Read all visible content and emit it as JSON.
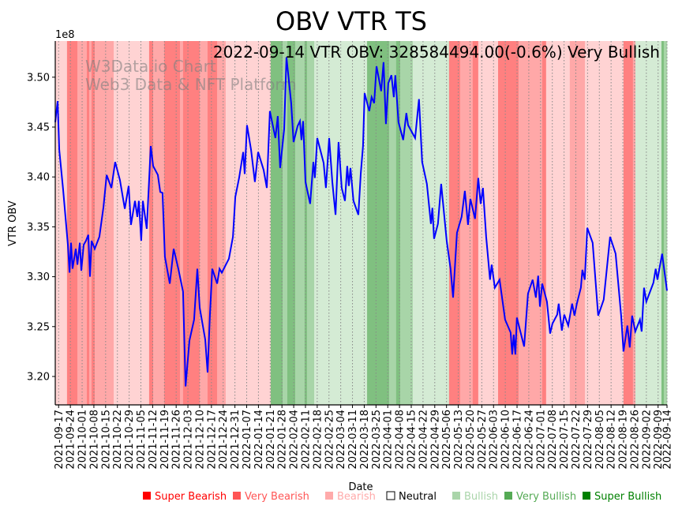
{
  "chart_data": {
    "type": "line",
    "title": "OBV VTR TS",
    "annotation": "2022-09-14 VTR OBV: 328584494.00(-0.6%) Very Bullish",
    "watermark": [
      "W3Data.io Chart",
      "Web3 Data & NFT Platform"
    ],
    "xlabel": "Date",
    "ylabel": "VTR OBV",
    "y_offset_label": "1e8",
    "ylim": [
      3.17,
      3.54
    ],
    "xlim_days": [
      0,
      364.3
    ],
    "start_date": "2021-09-15",
    "y_ticks": [
      "3.20",
      "3.25",
      "3.30",
      "3.35",
      "3.40",
      "3.45",
      "3.50"
    ],
    "x_ticks": [
      "2021-09-17",
      "2021-09-24",
      "2021-10-01",
      "2021-10-08",
      "2021-10-15",
      "2021-10-22",
      "2021-10-29",
      "2021-11-05",
      "2021-11-12",
      "2021-11-19",
      "2021-11-26",
      "2021-12-03",
      "2021-12-10",
      "2021-12-17",
      "2021-12-24",
      "2021-12-31",
      "2022-01-07",
      "2022-01-14",
      "2022-01-21",
      "2022-01-28",
      "2022-02-04",
      "2022-02-11",
      "2022-02-18",
      "2022-02-25",
      "2022-03-04",
      "2022-03-11",
      "2022-03-18",
      "2022-03-25",
      "2022-04-01",
      "2022-04-08",
      "2022-04-15",
      "2022-04-22",
      "2022-04-29",
      "2022-05-06",
      "2022-05-13",
      "2022-05-20",
      "2022-05-27",
      "2022-06-03",
      "2022-06-10",
      "2022-06-17",
      "2022-06-24",
      "2022-07-01",
      "2022-07-08",
      "2022-07-15",
      "2022-07-22",
      "2022-07-29",
      "2022-08-05",
      "2022-08-12",
      "2022-08-19",
      "2022-08-26",
      "2022-09-02",
      "2022-09-09",
      "2022-09-14"
    ],
    "series": [
      {
        "name": "VTR OBV (1e8)",
        "color": "#0000ff",
        "points": [
          [
            0,
            3.455
          ],
          [
            1.4,
            3.476
          ],
          [
            2.4,
            3.427
          ],
          [
            4.7,
            3.387
          ],
          [
            7.5,
            3.332
          ],
          [
            8.5,
            3.304
          ],
          [
            9.4,
            3.334
          ],
          [
            10.3,
            3.308
          ],
          [
            12.2,
            3.328
          ],
          [
            13.2,
            3.312
          ],
          [
            14.6,
            3.334
          ],
          [
            15.5,
            3.306
          ],
          [
            16.9,
            3.332
          ],
          [
            18.3,
            3.336
          ],
          [
            19.7,
            3.342
          ],
          [
            20.7,
            3.3
          ],
          [
            21.6,
            3.336
          ],
          [
            23.5,
            3.328
          ],
          [
            26.3,
            3.34
          ],
          [
            28.7,
            3.37
          ],
          [
            30.6,
            3.402
          ],
          [
            33.4,
            3.389
          ],
          [
            35.7,
            3.415
          ],
          [
            38.5,
            3.397
          ],
          [
            41.4,
            3.368
          ],
          [
            43.7,
            3.391
          ],
          [
            45.1,
            3.352
          ],
          [
            47.5,
            3.376
          ],
          [
            48.9,
            3.36
          ],
          [
            49.8,
            3.376
          ],
          [
            51.2,
            3.336
          ],
          [
            52.2,
            3.376
          ],
          [
            54.5,
            3.348
          ],
          [
            56.9,
            3.431
          ],
          [
            58.3,
            3.411
          ],
          [
            61.1,
            3.402
          ],
          [
            62.5,
            3.385
          ],
          [
            63.9,
            3.384
          ],
          [
            65.3,
            3.32
          ],
          [
            68.2,
            3.293
          ],
          [
            70.5,
            3.328
          ],
          [
            73.3,
            3.308
          ],
          [
            76.1,
            3.285
          ],
          [
            77.6,
            3.19
          ],
          [
            79.9,
            3.236
          ],
          [
            82.7,
            3.257
          ],
          [
            84.6,
            3.308
          ],
          [
            86,
            3.269
          ],
          [
            89.3,
            3.237
          ],
          [
            90.7,
            3.204
          ],
          [
            92.1,
            3.261
          ],
          [
            93.5,
            3.308
          ],
          [
            96.4,
            3.293
          ],
          [
            97.8,
            3.308
          ],
          [
            99.2,
            3.304
          ],
          [
            103.4,
            3.318
          ],
          [
            105.8,
            3.34
          ],
          [
            107.2,
            3.38
          ],
          [
            109.5,
            3.399
          ],
          [
            111.9,
            3.425
          ],
          [
            112.8,
            3.403
          ],
          [
            114.2,
            3.452
          ],
          [
            116.6,
            3.427
          ],
          [
            118.9,
            3.395
          ],
          [
            120.8,
            3.425
          ],
          [
            124.1,
            3.407
          ],
          [
            126,
            3.389
          ],
          [
            127.8,
            3.466
          ],
          [
            131.1,
            3.439
          ],
          [
            132.5,
            3.461
          ],
          [
            133.9,
            3.409
          ],
          [
            136.3,
            3.448
          ],
          [
            137.7,
            3.52
          ],
          [
            140.5,
            3.474
          ],
          [
            141.9,
            3.435
          ],
          [
            144.3,
            3.451
          ],
          [
            145.7,
            3.456
          ],
          [
            146.6,
            3.437
          ],
          [
            147.6,
            3.456
          ],
          [
            149,
            3.395
          ],
          [
            151.8,
            3.373
          ],
          [
            153.7,
            3.415
          ],
          [
            154.6,
            3.399
          ],
          [
            156,
            3.439
          ],
          [
            159.8,
            3.414
          ],
          [
            161.2,
            3.389
          ],
          [
            163.1,
            3.439
          ],
          [
            165,
            3.395
          ],
          [
            166.9,
            3.362
          ],
          [
            168.7,
            3.435
          ],
          [
            170.6,
            3.389
          ],
          [
            172.5,
            3.376
          ],
          [
            173.9,
            3.411
          ],
          [
            174.8,
            3.391
          ],
          [
            175.8,
            3.409
          ],
          [
            177.6,
            3.376
          ],
          [
            180.5,
            3.362
          ],
          [
            181.9,
            3.403
          ],
          [
            183.3,
            3.431
          ],
          [
            184.2,
            3.484
          ],
          [
            187,
            3.466
          ],
          [
            188.4,
            3.48
          ],
          [
            189.9,
            3.474
          ],
          [
            191.3,
            3.511
          ],
          [
            194.1,
            3.486
          ],
          [
            195.5,
            3.515
          ],
          [
            196.9,
            3.453
          ],
          [
            198.3,
            3.494
          ],
          [
            200.2,
            3.502
          ],
          [
            201.6,
            3.48
          ],
          [
            202.5,
            3.502
          ],
          [
            204.4,
            3.455
          ],
          [
            207.2,
            3.437
          ],
          [
            209.1,
            3.464
          ],
          [
            210.1,
            3.452
          ],
          [
            214.3,
            3.439
          ],
          [
            216.6,
            3.478
          ],
          [
            218.5,
            3.415
          ],
          [
            221.3,
            3.393
          ],
          [
            223.7,
            3.353
          ],
          [
            224.6,
            3.369
          ],
          [
            225.6,
            3.338
          ],
          [
            227.9,
            3.353
          ],
          [
            229.8,
            3.393
          ],
          [
            233.1,
            3.336
          ],
          [
            235.4,
            3.308
          ],
          [
            236.9,
            3.279
          ],
          [
            239.2,
            3.344
          ],
          [
            242,
            3.36
          ],
          [
            243.9,
            3.386
          ],
          [
            245.8,
            3.352
          ],
          [
            247.2,
            3.378
          ],
          [
            250,
            3.358
          ],
          [
            251.9,
            3.399
          ],
          [
            253.3,
            3.373
          ],
          [
            254.7,
            3.389
          ],
          [
            256.6,
            3.34
          ],
          [
            258.9,
            3.297
          ],
          [
            259.9,
            3.312
          ],
          [
            261.8,
            3.289
          ],
          [
            264.6,
            3.297
          ],
          [
            267.9,
            3.257
          ],
          [
            271.2,
            3.244
          ],
          [
            272.1,
            3.222
          ],
          [
            273,
            3.242
          ],
          [
            274,
            3.222
          ],
          [
            274.9,
            3.259
          ],
          [
            279.2,
            3.23
          ],
          [
            281.5,
            3.283
          ],
          [
            284.3,
            3.297
          ],
          [
            286.2,
            3.279
          ],
          [
            287.6,
            3.301
          ],
          [
            288.6,
            3.27
          ],
          [
            290,
            3.293
          ],
          [
            292.8,
            3.275
          ],
          [
            294.7,
            3.243
          ],
          [
            296.1,
            3.253
          ],
          [
            298.9,
            3.262
          ],
          [
            299.8,
            3.273
          ],
          [
            301.7,
            3.246
          ],
          [
            303.1,
            3.262
          ],
          [
            305.5,
            3.251
          ],
          [
            307.8,
            3.273
          ],
          [
            309.2,
            3.261
          ],
          [
            310.6,
            3.273
          ],
          [
            313,
            3.289
          ],
          [
            313.9,
            3.307
          ],
          [
            315.3,
            3.297
          ],
          [
            316.8,
            3.349
          ],
          [
            320,
            3.334
          ],
          [
            323.3,
            3.261
          ],
          [
            326.6,
            3.277
          ],
          [
            330.4,
            3.34
          ],
          [
            333.7,
            3.323
          ],
          [
            337,
            3.261
          ],
          [
            338.4,
            3.225
          ],
          [
            340.7,
            3.251
          ],
          [
            342.1,
            3.229
          ],
          [
            343.5,
            3.261
          ],
          [
            345.4,
            3.245
          ],
          [
            348.2,
            3.257
          ],
          [
            349.2,
            3.245
          ],
          [
            350.6,
            3.289
          ],
          [
            352,
            3.275
          ],
          [
            356.2,
            3.294
          ],
          [
            357.6,
            3.308
          ],
          [
            358.6,
            3.297
          ],
          [
            361.4,
            3.323
          ],
          [
            364.3,
            3.286
          ]
        ]
      }
    ],
    "sentiment_bands": [
      [
        0,
        7,
        "bearish"
      ],
      [
        7,
        13.2,
        "super_bearish"
      ],
      [
        13.2,
        18.8,
        "very_bearish"
      ],
      [
        18.8,
        20.2,
        "super_bearish"
      ],
      [
        20.2,
        21.6,
        "very_bearish"
      ],
      [
        21.6,
        23.5,
        "super_bearish"
      ],
      [
        23.5,
        34.8,
        "very_bearish"
      ],
      [
        34.8,
        55.9,
        "bearish"
      ],
      [
        55.9,
        58.3,
        "super_bearish"
      ],
      [
        58.3,
        64.9,
        "very_bearish"
      ],
      [
        64.9,
        74.3,
        "super_bearish"
      ],
      [
        74.3,
        76.1,
        "very_bearish"
      ],
      [
        76.1,
        86,
        "super_bearish"
      ],
      [
        86,
        90.7,
        "very_bearish"
      ],
      [
        90.7,
        96.4,
        "super_bearish"
      ],
      [
        96.4,
        101.5,
        "very_bearish"
      ],
      [
        101.5,
        128.3,
        "bearish"
      ],
      [
        128.3,
        135.4,
        "super_bullish"
      ],
      [
        135.4,
        138.2,
        "very_bullish"
      ],
      [
        138.2,
        142.9,
        "super_bullish"
      ],
      [
        142.9,
        148.5,
        "very_bullish"
      ],
      [
        148.5,
        149.9,
        "super_bullish"
      ],
      [
        149.9,
        154.2,
        "very_bullish"
      ],
      [
        154.2,
        185.7,
        "bullish"
      ],
      [
        185.7,
        198.8,
        "super_bullish"
      ],
      [
        198.8,
        203,
        "very_bullish"
      ],
      [
        203,
        205.4,
        "super_bullish"
      ],
      [
        205.4,
        212.9,
        "very_bullish"
      ],
      [
        212.9,
        234.5,
        "bullish"
      ],
      [
        234.5,
        241.1,
        "super_bearish"
      ],
      [
        241.1,
        248.6,
        "very_bearish"
      ],
      [
        248.6,
        251.9,
        "super_bearish"
      ],
      [
        251.9,
        263.7,
        "bearish"
      ],
      [
        263.7,
        275.9,
        "super_bearish"
      ],
      [
        275.9,
        290,
        "very_bearish"
      ],
      [
        290,
        292.3,
        "super_bearish"
      ],
      [
        292.3,
        306.4,
        "bearish"
      ],
      [
        306.4,
        315.4,
        "very_bearish"
      ],
      [
        315.4,
        338.4,
        "bearish"
      ],
      [
        338.4,
        344,
        "super_bearish"
      ],
      [
        344,
        345.5,
        "very_bearish"
      ],
      [
        345.5,
        361,
        "bullish"
      ],
      [
        361,
        362.4,
        "super_bullish"
      ],
      [
        362.4,
        364.3,
        "very_bullish"
      ]
    ],
    "band_colors": {
      "super_bearish": "#ff8080",
      "very_bearish": "#ffa8a8",
      "bearish": "#ffd3d3",
      "bullish": "#d4ebd4",
      "very_bullish": "#a8d5a8",
      "super_bullish": "#80c080"
    },
    "legend": [
      {
        "label": "Super Bearish",
        "color": "#ff0000"
      },
      {
        "label": "Very Bearish",
        "color": "#ff5555"
      },
      {
        "label": "Bearish",
        "color": "#ffaaaa"
      },
      {
        "label": "Neutral",
        "color": "#ffffff"
      },
      {
        "label": "Bullish",
        "color": "#aad5aa"
      },
      {
        "label": "Very Bullish",
        "color": "#55aa55"
      },
      {
        "label": "Super Bullish",
        "color": "#008000"
      }
    ],
    "legend_placement": "bottom",
    "grid": "vertical dotted"
  }
}
